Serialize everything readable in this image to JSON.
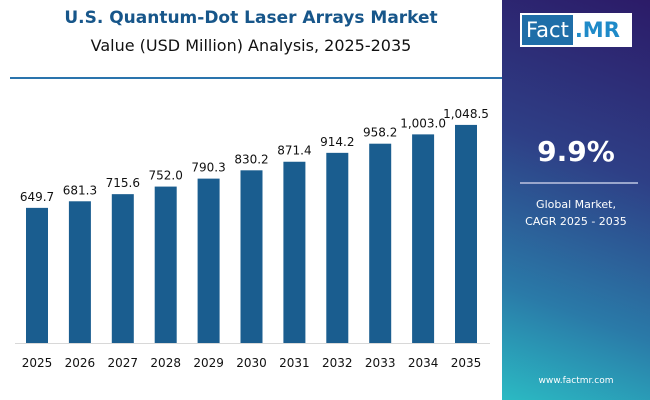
{
  "header": {
    "title": "U.S. Quantum-Dot Laser Arrays Market",
    "subtitle": "Value (USD Million) Analysis, 2025-2035"
  },
  "side_panel": {
    "logo_text": "Fact.MR",
    "cagr_value": "9.9%",
    "cagr_label_line1": "Global Market,",
    "cagr_label_line2": "CAGR 2025 - 2035",
    "url": "www.factmr.com"
  },
  "colors": {
    "bar": "#1a5d8f",
    "title": "#17568a"
  },
  "chart_data": {
    "type": "bar",
    "title": "U.S. Quantum-Dot Laser Arrays Market",
    "subtitle": "Value (USD Million) Analysis, 2025-2035",
    "categories": [
      "2025",
      "2026",
      "2027",
      "2028",
      "2029",
      "2030",
      "2031",
      "2032",
      "2033",
      "2034",
      "2035"
    ],
    "values": [
      649.7,
      681.3,
      715.6,
      752.0,
      790.3,
      830.2,
      871.4,
      914.2,
      958.2,
      1003.0,
      1048.5
    ],
    "labels": [
      "649.7",
      "681.3",
      "715.6",
      "752.0",
      "790.3",
      "830.2",
      "871.4",
      "914.2",
      "958.2",
      "1,003.0",
      "1,048.5"
    ],
    "xlabel": "",
    "ylabel": "",
    "ylim": [
      0,
      1260
    ],
    "grid": false
  }
}
